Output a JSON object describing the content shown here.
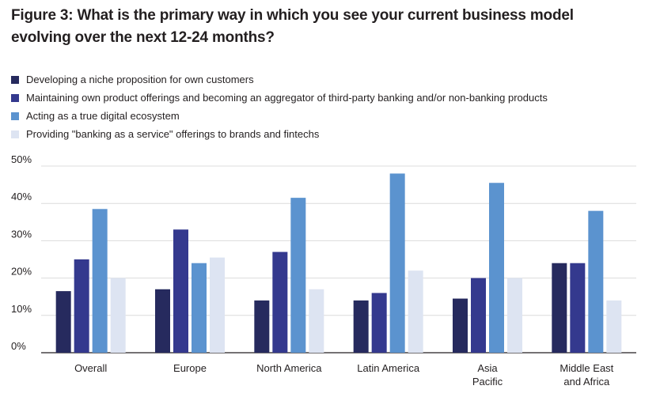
{
  "figure": {
    "title_line1": "Figure 3: What is the primary way in which you see your current business model",
    "title_line2": "evolving over the next 12-24 months?"
  },
  "colors": {
    "series": [
      "#262a5e",
      "#34398e",
      "#5b93cf",
      "#dde4f2"
    ],
    "grid": "#dcdcdc",
    "axis": "#231f20"
  },
  "chart_data": {
    "type": "bar",
    "categories": [
      [
        "Overall"
      ],
      [
        "Europe"
      ],
      [
        "North America"
      ],
      [
        "Latin America"
      ],
      [
        "Asia",
        "Pacific"
      ],
      [
        "Middle East",
        "and Africa"
      ]
    ],
    "series": [
      {
        "name": "Developing a niche proposition for own customers",
        "values": [
          16.5,
          17,
          14,
          14,
          14.5,
          24
        ]
      },
      {
        "name": "Maintaining own product offerings and becoming an aggregator of third-party banking and/or non-banking products",
        "values": [
          25,
          33,
          27,
          16,
          20,
          24
        ]
      },
      {
        "name": "Acting as a true digital ecosystem",
        "values": [
          38.5,
          24,
          41.5,
          48,
          45.5,
          38
        ]
      },
      {
        "name": "Providing \"banking as a service\" offerings to brands and fintechs",
        "values": [
          20,
          25.5,
          17,
          22,
          20,
          14
        ]
      }
    ],
    "ylim": [
      0,
      50
    ],
    "yticks": [
      "0%",
      "10%",
      "20%",
      "30%",
      "40%",
      "50%"
    ],
    "grid": true,
    "legend_position": "top-left"
  }
}
